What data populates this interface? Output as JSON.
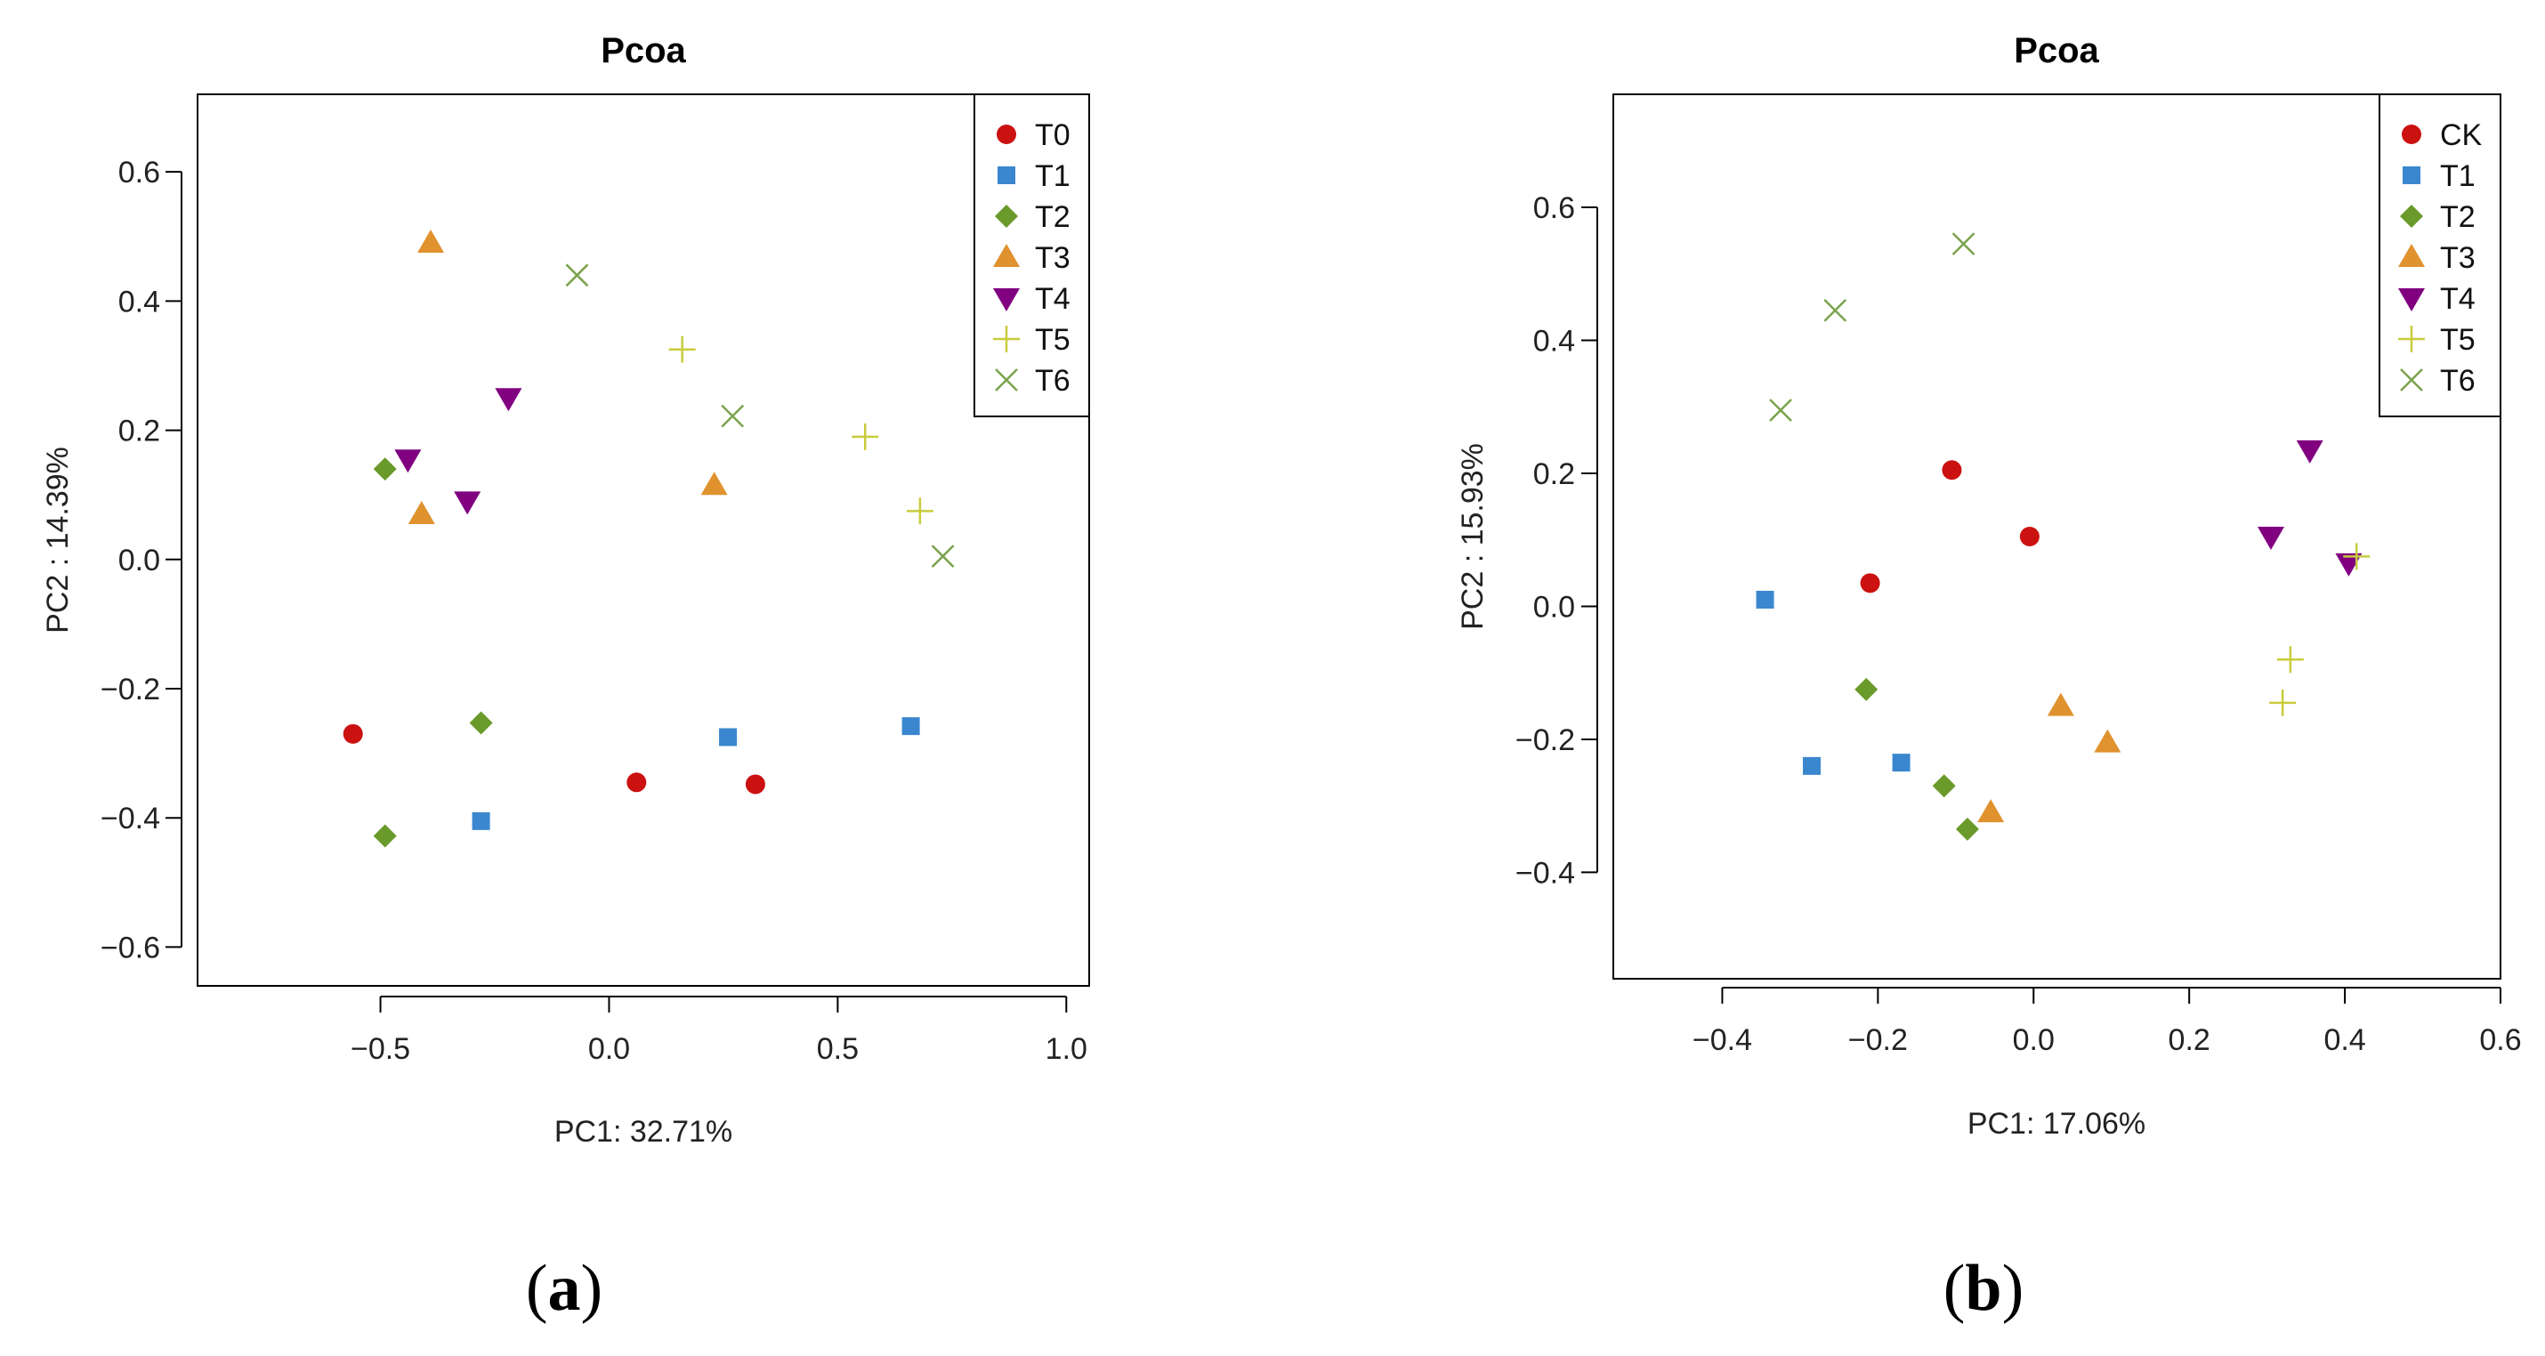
{
  "panels": {
    "a": {
      "label_open": "(",
      "label_letter": "a",
      "label_close": ")"
    },
    "b": {
      "label_open": "(",
      "label_letter": "b",
      "label_close": ")"
    }
  },
  "chart_data": [
    {
      "id": "a",
      "type": "scatter",
      "title": "Pcoa",
      "xlabel": "PC1: 32.71%",
      "ylabel": "PC2 : 14.39%",
      "xlim": [
        -0.9,
        1.05
      ],
      "ylim": [
        -0.66,
        0.72
      ],
      "xticks": [
        -0.5,
        0.0,
        0.5,
        1.0
      ],
      "xtick_labels": [
        "−0.5",
        "0.0",
        "0.5",
        "1.0"
      ],
      "yticks": [
        -0.6,
        -0.4,
        -0.2,
        0.0,
        0.2,
        0.4,
        0.6
      ],
      "ytick_labels": [
        "−0.6",
        "−0.4",
        "−0.2",
        "0.0",
        "0.2",
        "0.4",
        "0.6"
      ],
      "grid": false,
      "legend_position": "top-right",
      "series": [
        {
          "name": "T0",
          "marker": "circle",
          "color": "#cc1111",
          "points": [
            [
              -0.56,
              -0.27
            ],
            [
              0.06,
              -0.345
            ],
            [
              0.32,
              -0.348
            ]
          ]
        },
        {
          "name": "T1",
          "marker": "square",
          "color": "#3a87cf",
          "points": [
            [
              -0.28,
              -0.405
            ],
            [
              0.26,
              -0.275
            ],
            [
              0.66,
              -0.258
            ]
          ]
        },
        {
          "name": "T2",
          "marker": "diamond",
          "color": "#6a9a2a",
          "points": [
            [
              -0.49,
              0.14
            ],
            [
              -0.28,
              -0.253
            ],
            [
              -0.49,
              -0.428
            ]
          ]
        },
        {
          "name": "T3",
          "marker": "triangle-up",
          "color": "#e0922e",
          "points": [
            [
              -0.39,
              0.49
            ],
            [
              -0.41,
              0.07
            ],
            [
              0.23,
              0.115
            ]
          ]
        },
        {
          "name": "T4",
          "marker": "triangle-down",
          "color": "#800080",
          "points": [
            [
              -0.44,
              0.155
            ],
            [
              -0.31,
              0.09
            ],
            [
              -0.22,
              0.25
            ]
          ]
        },
        {
          "name": "T5",
          "marker": "plus",
          "color": "#c8cc3c",
          "points": [
            [
              0.16,
              0.325
            ],
            [
              0.56,
              0.19
            ],
            [
              0.68,
              0.075
            ]
          ]
        },
        {
          "name": "T6",
          "marker": "cross",
          "color": "#7aa34c",
          "points": [
            [
              -0.07,
              0.44
            ],
            [
              0.27,
              0.222
            ],
            [
              0.73,
              0.005
            ]
          ]
        }
      ]
    },
    {
      "id": "b",
      "type": "scatter",
      "title": "Pcoa",
      "xlabel": "PC1: 17.06%",
      "ylabel": "PC2 : 15.93%",
      "xlim": [
        -0.54,
        0.6
      ],
      "ylim": [
        -0.56,
        0.77
      ],
      "xticks": [
        -0.4,
        -0.2,
        0.0,
        0.2,
        0.4,
        0.6
      ],
      "xtick_labels": [
        "−0.4",
        "−0.2",
        "0.0",
        "0.2",
        "0.4",
        "0.6"
      ],
      "yticks": [
        -0.4,
        -0.2,
        0.0,
        0.2,
        0.4,
        0.6
      ],
      "ytick_labels": [
        "−0.4",
        "−0.2",
        "0.0",
        "0.2",
        "0.4",
        "0.6"
      ],
      "grid": false,
      "legend_position": "top-right",
      "series": [
        {
          "name": "CK",
          "marker": "circle",
          "color": "#cc1111",
          "points": [
            [
              -0.21,
              0.035
            ],
            [
              -0.105,
              0.205
            ],
            [
              -0.005,
              0.105
            ]
          ]
        },
        {
          "name": "T1",
          "marker": "square",
          "color": "#3a87cf",
          "points": [
            [
              -0.345,
              0.01
            ],
            [
              -0.285,
              -0.24
            ],
            [
              -0.17,
              -0.235
            ]
          ]
        },
        {
          "name": "T2",
          "marker": "diamond",
          "color": "#6a9a2a",
          "points": [
            [
              -0.215,
              -0.125
            ],
            [
              -0.115,
              -0.27
            ],
            [
              -0.085,
              -0.335
            ]
          ]
        },
        {
          "name": "T3",
          "marker": "triangle-up",
          "color": "#e0922e",
          "points": [
            [
              0.035,
              -0.15
            ],
            [
              0.095,
              -0.205
            ],
            [
              -0.055,
              -0.31
            ]
          ]
        },
        {
          "name": "T4",
          "marker": "triangle-down",
          "color": "#800080",
          "points": [
            [
              0.305,
              0.105
            ],
            [
              0.355,
              0.235
            ],
            [
              0.405,
              0.065
            ]
          ]
        },
        {
          "name": "T5",
          "marker": "plus",
          "color": "#c8cc3c",
          "points": [
            [
              0.415,
              0.075
            ],
            [
              0.33,
              -0.08
            ],
            [
              0.32,
              -0.145
            ]
          ]
        },
        {
          "name": "T6",
          "marker": "cross",
          "color": "#7aa34c",
          "points": [
            [
              -0.325,
              0.295
            ],
            [
              -0.255,
              0.445
            ],
            [
              -0.09,
              0.545
            ]
          ]
        }
      ]
    }
  ]
}
